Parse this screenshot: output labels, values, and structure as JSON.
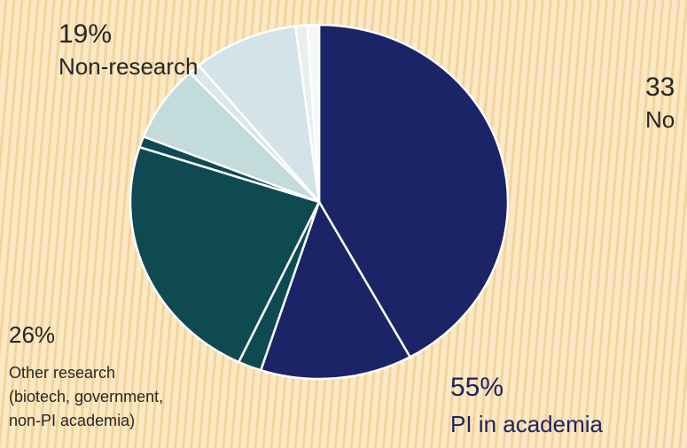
{
  "chart_data": {
    "type": "pie",
    "values": [
      42,
      13,
      2,
      23,
      1,
      7,
      1,
      9,
      1,
      1
    ],
    "colors": [
      "#1b2466",
      "#1b2466",
      "#0f4a52",
      "#0f4a52",
      "#0f4a52",
      "#c3dbdb",
      "#d9e7e7",
      "#d4e3e7",
      "#e9eff1",
      "#f5f7f8"
    ],
    "annotations": [
      {
        "pct": "19%",
        "label": [
          "Non-research"
        ]
      },
      {
        "pct": "33",
        "label": [
          "No"
        ]
      },
      {
        "pct": "26%",
        "label": [
          "Other research",
          "(biotech, government,",
          "non-PI academia)"
        ]
      },
      {
        "pct": "55%",
        "label": [
          "PI in academia"
        ]
      }
    ]
  }
}
